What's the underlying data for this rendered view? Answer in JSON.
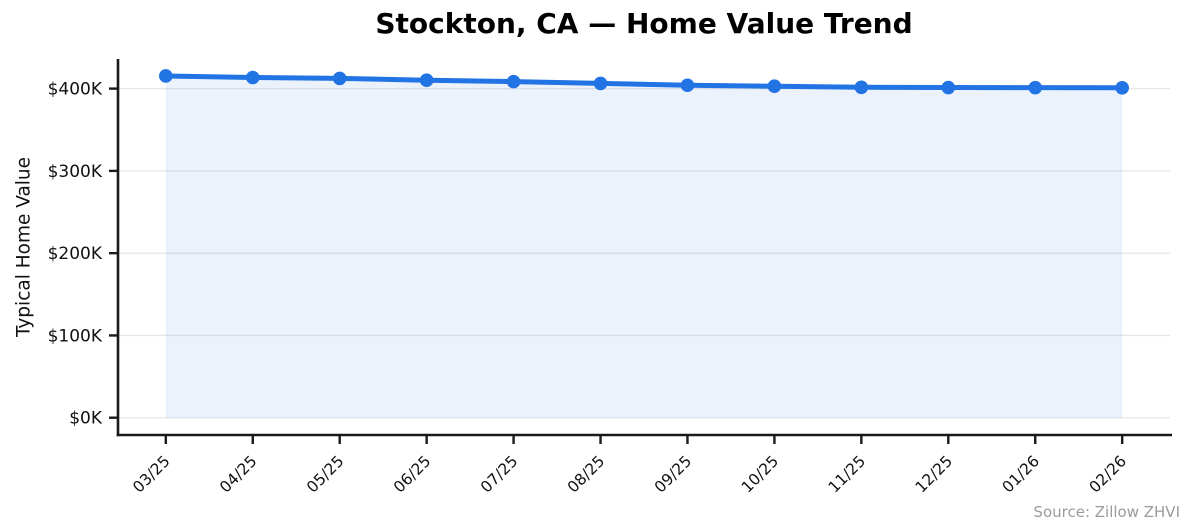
{
  "chart_data": {
    "type": "line",
    "title": "Stockton, CA — Home Value Trend",
    "ylabel": "Typical Home Value",
    "xlabel": "",
    "categories": [
      "03/25",
      "04/25",
      "05/25",
      "06/25",
      "07/25",
      "08/25",
      "09/25",
      "10/25",
      "11/25",
      "12/25",
      "01/26",
      "02/26"
    ],
    "values": [
      415.4,
      413.5,
      412.4,
      410.2,
      408.5,
      406.3,
      404.1,
      402.9,
      401.6,
      401.3,
      401.2,
      401.0
    ],
    "values_unit": "USD thousands",
    "y_ticks": {
      "values": [
        0,
        100,
        200,
        300,
        400
      ],
      "labels": [
        "$0K",
        "$100K",
        "$200K",
        "$300K",
        "$400K"
      ]
    },
    "xlim": [
      -0.55,
      11.55
    ],
    "ylim": [
      -21,
      436
    ],
    "grid": "horizontal",
    "legend": "none",
    "area_fill": true,
    "marker": "circle",
    "x_tick_rotation": -45,
    "colors": {
      "line": "#2273E3",
      "fill": "rgba(34,115,227,0.09)",
      "grid": "#E7E7E7",
      "axis": "#1A1A1A",
      "text": "#111111",
      "title": "#000000",
      "source": "#9B9B9B"
    }
  },
  "source_note": "Source: Zillow ZHVI"
}
